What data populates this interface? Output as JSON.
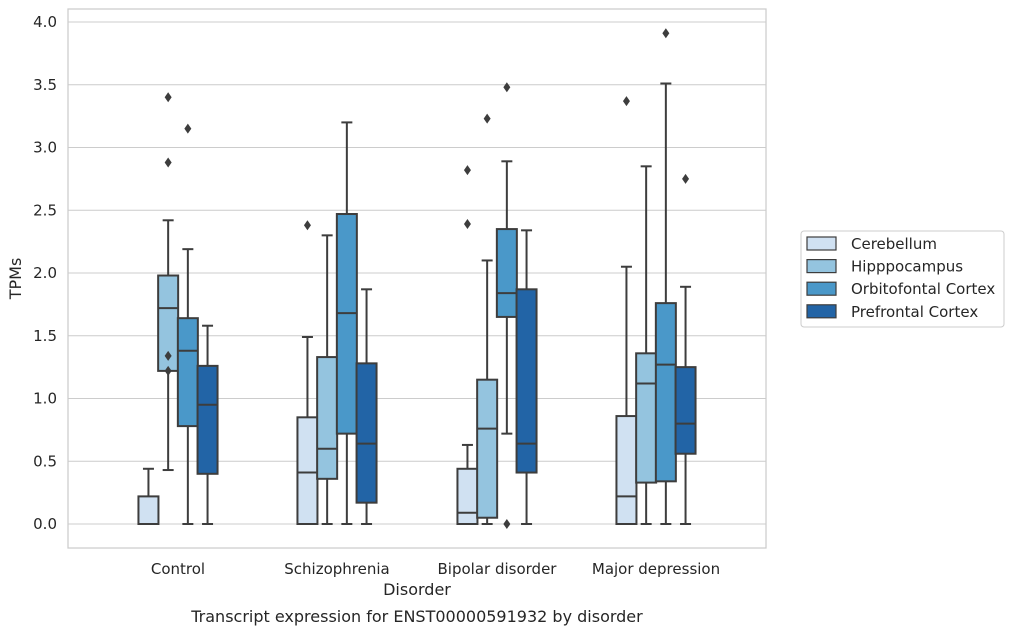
{
  "caption": "Transcript expression for ENST00000591932 by disorder",
  "chart_data": {
    "type": "box",
    "xlabel": "Disorder",
    "ylabel": "TPMs",
    "ylim": [
      -0.19,
      4.1
    ],
    "yticks": [
      "0.0",
      "0.5",
      "1.0",
      "1.5",
      "2.0",
      "2.5",
      "3.0",
      "3.5",
      "4.0"
    ],
    "grid": "horizontal",
    "legend_position": "right",
    "categories": [
      "Control",
      "Schizophrenia",
      "Bipolar disorder",
      "Major depression"
    ],
    "series": [
      {
        "name": "Cerebellum",
        "color": "#d0e1f2",
        "boxes": [
          {
            "whislo": 0.0,
            "q1": 0.0,
            "med": 0.0,
            "q3": 0.22,
            "whishi": 0.44,
            "fliers": []
          },
          {
            "whislo": 0.0,
            "q1": 0.0,
            "med": 0.41,
            "q3": 0.85,
            "whishi": 1.49,
            "fliers": [
              2.38
            ]
          },
          {
            "whislo": 0.0,
            "q1": 0.0,
            "med": 0.09,
            "q3": 0.44,
            "whishi": 0.63,
            "fliers": [
              2.39,
              2.82
            ]
          },
          {
            "whislo": 0.0,
            "q1": 0.0,
            "med": 0.22,
            "q3": 0.86,
            "whishi": 2.05,
            "fliers": [
              3.37
            ]
          }
        ]
      },
      {
        "name": "Hipppocampus",
        "color": "#94c4df",
        "boxes": [
          {
            "whislo": 0.43,
            "q1": 1.22,
            "med": 1.72,
            "q3": 1.98,
            "whishi": 2.42,
            "fliers": [
              1.22,
              1.34,
              2.88,
              3.4
            ]
          },
          {
            "whislo": 0.0,
            "q1": 0.36,
            "med": 0.6,
            "q3": 1.33,
            "whishi": 2.3,
            "fliers": []
          },
          {
            "whislo": 0.0,
            "q1": 0.05,
            "med": 0.76,
            "q3": 1.15,
            "whishi": 2.1,
            "fliers": [
              3.23
            ]
          },
          {
            "whislo": 0.0,
            "q1": 0.33,
            "med": 1.12,
            "q3": 1.36,
            "whishi": 2.85,
            "fliers": []
          }
        ]
      },
      {
        "name": "Orbitofontal Cortex",
        "color": "#4a98c9",
        "boxes": [
          {
            "whislo": 0.0,
            "q1": 0.78,
            "med": 1.38,
            "q3": 1.64,
            "whishi": 2.19,
            "fliers": [
              3.15
            ]
          },
          {
            "whislo": 0.0,
            "q1": 0.72,
            "med": 1.68,
            "q3": 2.47,
            "whishi": 3.2,
            "fliers": []
          },
          {
            "whislo": 0.72,
            "q1": 1.65,
            "med": 1.84,
            "q3": 2.35,
            "whishi": 2.89,
            "fliers": [
              0.0,
              3.48
            ]
          },
          {
            "whislo": 0.0,
            "q1": 0.34,
            "med": 1.27,
            "q3": 1.76,
            "whishi": 3.51,
            "fliers": [
              3.91
            ]
          }
        ]
      },
      {
        "name": "Prefrontal Cortex",
        "color": "#2264a6",
        "boxes": [
          {
            "whislo": 0.0,
            "q1": 0.4,
            "med": 0.95,
            "q3": 1.26,
            "whishi": 1.58,
            "fliers": []
          },
          {
            "whislo": 0.0,
            "q1": 0.17,
            "med": 0.64,
            "q3": 1.28,
            "whishi": 1.87,
            "fliers": []
          },
          {
            "whislo": 0.0,
            "q1": 0.41,
            "med": 0.64,
            "q3": 1.87,
            "whishi": 2.34,
            "fliers": []
          },
          {
            "whislo": 0.0,
            "q1": 0.56,
            "med": 0.8,
            "q3": 1.25,
            "whishi": 1.89,
            "fliers": [
              2.75
            ]
          }
        ]
      }
    ]
  }
}
